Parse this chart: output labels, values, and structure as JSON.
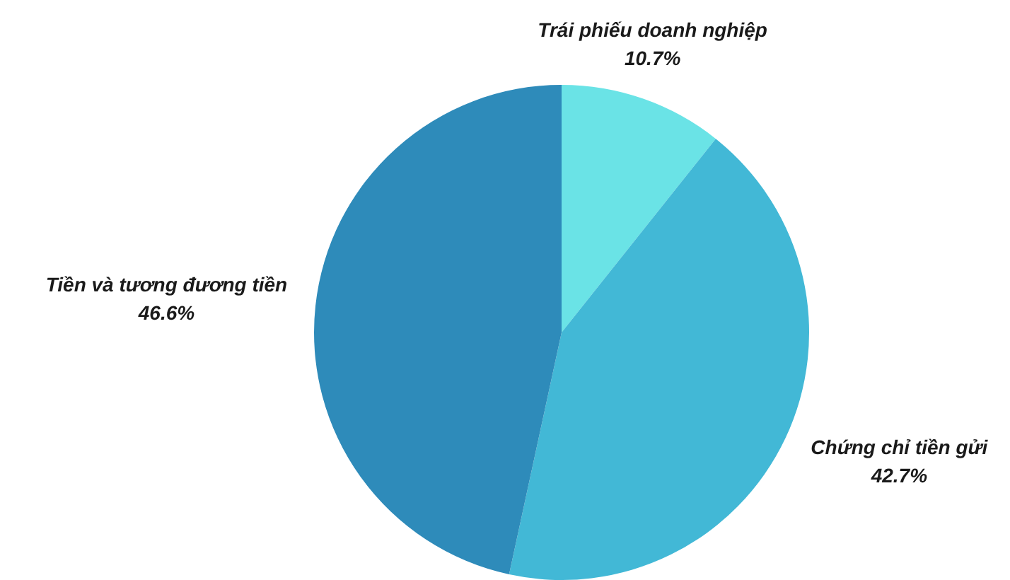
{
  "chart_data": {
    "type": "pie",
    "categories": [
      "Trái phiếu doanh nghiệp",
      "Chứng chỉ tiền gửi",
      "Tiền và tương đương tiền"
    ],
    "values": [
      10.7,
      42.7,
      46.6
    ],
    "value_labels": [
      "10.7%",
      "42.7%",
      "46.6%"
    ],
    "colors": [
      "#6ae3e6",
      "#42b8d6",
      "#2e8bba"
    ]
  }
}
